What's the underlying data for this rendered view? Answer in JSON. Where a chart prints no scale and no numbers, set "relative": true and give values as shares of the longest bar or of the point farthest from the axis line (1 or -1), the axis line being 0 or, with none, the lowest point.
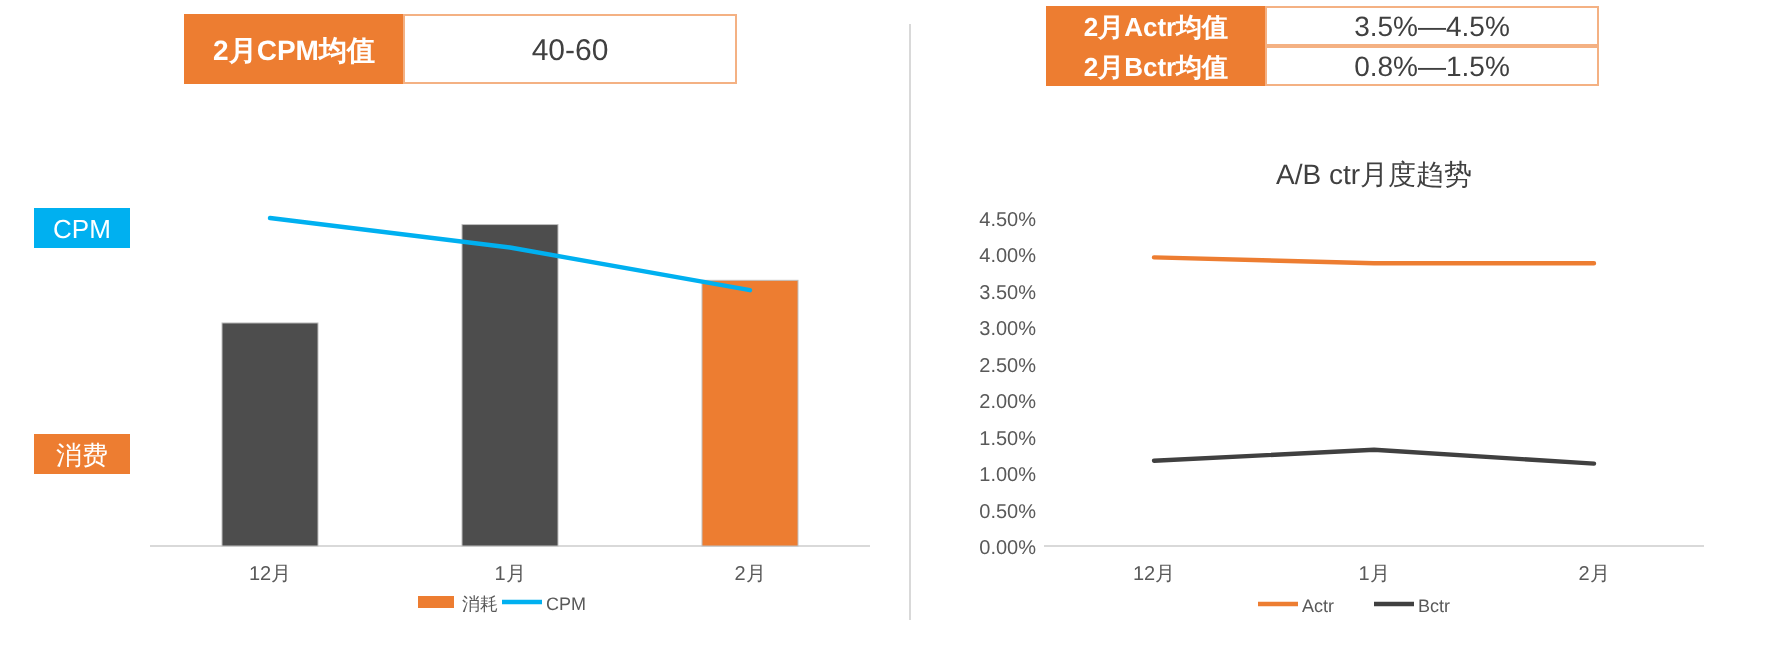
{
  "chart_data": [
    {
      "type": "bar",
      "relative": true,
      "categories": [
        "12月",
        "1月",
        "2月"
      ],
      "series": [
        {
          "name": "消耗",
          "color": "#ed7d31",
          "colors": [
            "#4d4d4d",
            "#4d4d4d",
            "#ed7d31"
          ],
          "values": [
            0.68,
            0.98,
            0.81
          ]
        },
        {
          "name": "CPM",
          "type": "line",
          "color": "#00b0f0",
          "values": [
            1,
            0.91,
            0.78
          ]
        }
      ],
      "legend": "bottom",
      "grid": false,
      "marker": "none",
      "line_style": "solid",
      "annotations": [
        "2月CPM均值",
        "40-60",
        "CPM",
        "消费"
      ]
    },
    {
      "type": "line",
      "title": "A/B ctr月度趋势",
      "categories": [
        "12月",
        "1月",
        "2月"
      ],
      "series": [
        {
          "name": "Actr",
          "color": "#ed7d31",
          "values": [
            3.96,
            3.88,
            3.88
          ]
        },
        {
          "name": "Bctr",
          "color": "#404040",
          "values": [
            1.17,
            1.32,
            1.13
          ]
        }
      ],
      "ylim": [
        0,
        4.5
      ],
      "yticks": [
        {
          "value": 0,
          "label": "0.00%"
        },
        {
          "value": 0.5,
          "label": "0.50%"
        },
        {
          "value": 1,
          "label": "1.00%"
        },
        {
          "value": 1.5,
          "label": "1.50%"
        },
        {
          "value": 2,
          "label": "2.00%"
        },
        {
          "value": 2.5,
          "label": "2.50%"
        },
        {
          "value": 3,
          "label": "3.00%"
        },
        {
          "value": 3.5,
          "label": "3.50%"
        },
        {
          "value": 4,
          "label": "4.00%"
        },
        {
          "value": 4.5,
          "label": "4.50%"
        }
      ],
      "legend": "bottom",
      "grid": false,
      "marker": "none",
      "line_style": "solid",
      "annotations": [
        "2月Actr均值",
        "3.5%—4.5%",
        "2月Bctr均值",
        "0.8%—1.5%"
      ]
    }
  ]
}
